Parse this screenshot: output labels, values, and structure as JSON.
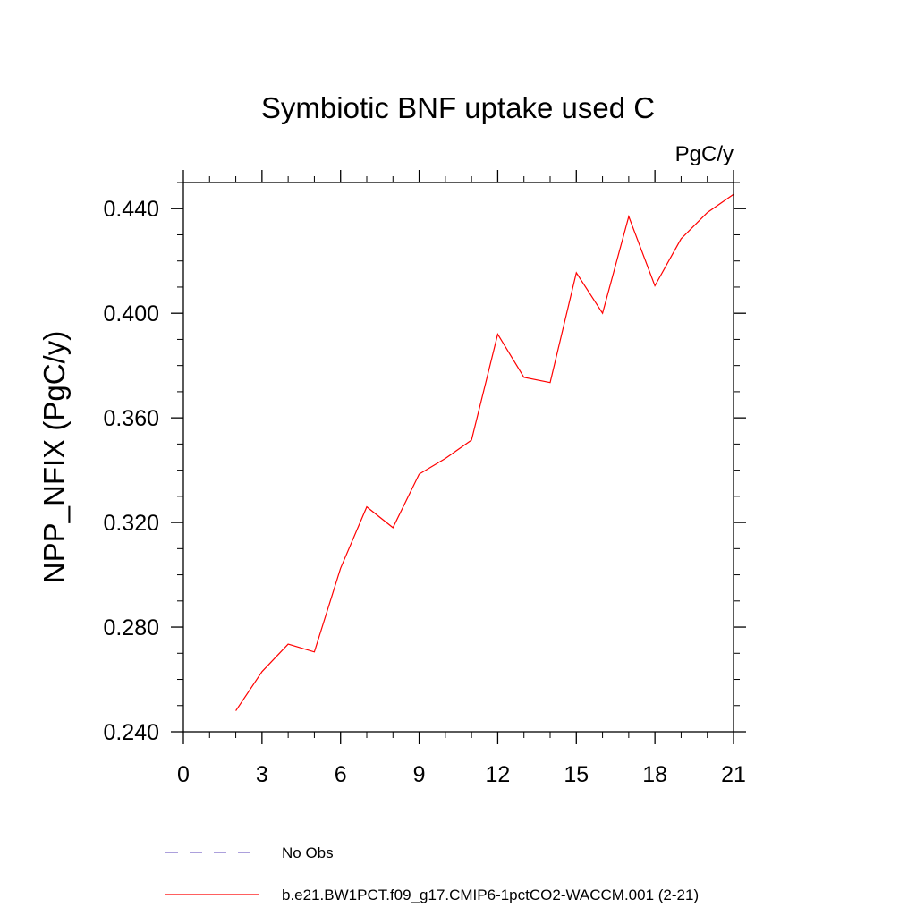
{
  "chart_data": {
    "type": "line",
    "title": "Symbiotic BNF uptake used C",
    "units_label": "PgC/y",
    "xlabel": "",
    "ylabel": "NPP_NFIX  (PgC/y)",
    "xlim": [
      0,
      21
    ],
    "ylim": [
      0.24,
      0.45
    ],
    "x_ticks": [
      0,
      3,
      6,
      9,
      12,
      15,
      18,
      21
    ],
    "x_tick_labels": [
      "0",
      "3",
      "6",
      "9",
      "12",
      "15",
      "18",
      "21"
    ],
    "y_ticks": [
      0.24,
      0.28,
      0.32,
      0.36,
      0.4,
      0.44
    ],
    "y_tick_labels": [
      "0.240",
      "0.280",
      "0.320",
      "0.360",
      "0.400",
      "0.440"
    ],
    "grid": false,
    "legend_position": "bottom",
    "series": [
      {
        "name": "b.e21.BW1PCT.f09_g17.CMIP6-1pctCO2-WACCM.001 (2-21)",
        "color": "#ff0000",
        "style": "solid",
        "x": [
          2,
          3,
          4,
          5,
          6,
          7,
          8,
          9,
          10,
          11,
          12,
          13,
          14,
          15,
          16,
          17,
          18,
          19,
          20,
          21
        ],
        "values": [
          0.248,
          0.263,
          0.2735,
          0.2705,
          0.3025,
          0.326,
          0.318,
          0.3385,
          0.3445,
          0.3515,
          0.392,
          0.3755,
          0.3735,
          0.4155,
          0.4,
          0.437,
          0.4105,
          0.4285,
          0.4385,
          0.4455
        ]
      }
    ],
    "legend": [
      {
        "label": "No Obs",
        "color": "#7b68c8",
        "style": "dashed"
      },
      {
        "label": "b.e21.BW1PCT.f09_g17.CMIP6-1pctCO2-WACCM.001 (2-21)",
        "color": "#ff0000",
        "style": "solid"
      }
    ]
  }
}
